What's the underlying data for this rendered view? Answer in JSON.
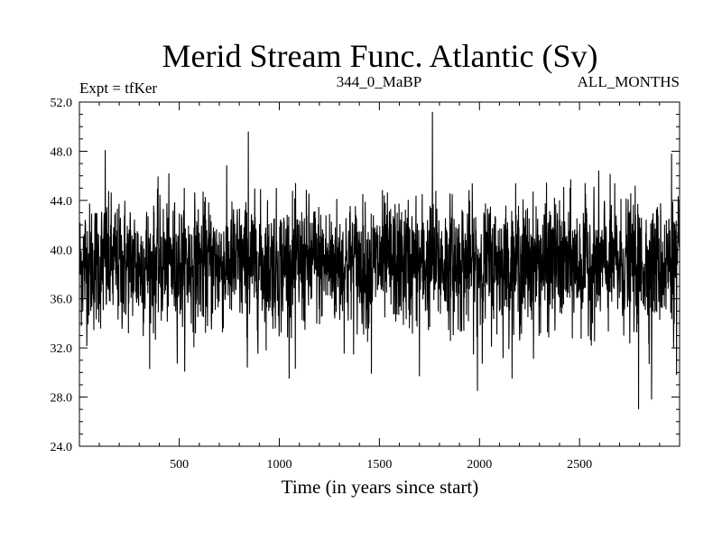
{
  "chart_data": {
    "type": "line",
    "title": "Merid Stream Func. Atlantic (Sv)",
    "subtitle_left": "Expt = tfKer",
    "subtitle_center": "344_0_MaBP",
    "subtitle_right": "ALL_MONTHS",
    "xlabel": "Time (in years since start)",
    "ylabel": "",
    "xlim": [
      1,
      3000
    ],
    "ylim": [
      24.0,
      52.0
    ],
    "x_ticks": [
      500,
      1000,
      1500,
      2000,
      2500
    ],
    "y_ticks": [
      "24.0",
      "28.0",
      "32.0",
      "36.0",
      "40.0",
      "44.0",
      "48.0",
      "52.0"
    ],
    "grid": false,
    "line_color": "#000000",
    "series": [
      {
        "x_start": 1,
        "x_end": 3000,
        "x_step": 1,
        "mean": 38.8,
        "typical_range": [
          33.5,
          44.0
        ],
        "notable_points": [
          {
            "x": 1765,
            "y": 51.2
          },
          {
            "x": 845,
            "y": 49.6
          },
          {
            "x": 2960,
            "y": 47.8
          },
          {
            "x": 130,
            "y": 48.1
          },
          {
            "x": 2795,
            "y": 27.0
          },
          {
            "x": 2860,
            "y": 27.8
          },
          {
            "x": 1990,
            "y": 28.5
          },
          {
            "x": 1700,
            "y": 29.7
          },
          {
            "x": 840,
            "y": 30.4
          },
          {
            "x": 1080,
            "y": 30.3
          },
          {
            "x": 1460,
            "y": 29.9
          },
          {
            "x": 2985,
            "y": 29.8
          }
        ]
      }
    ]
  }
}
